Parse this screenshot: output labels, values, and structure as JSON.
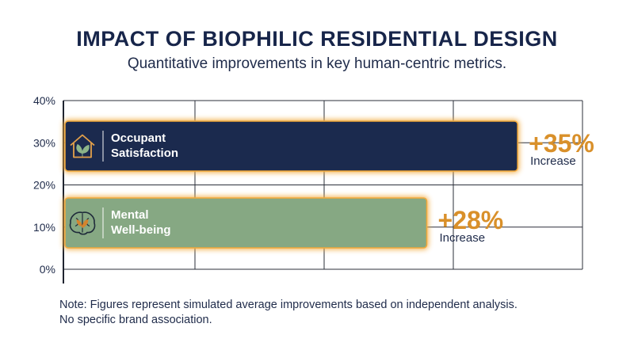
{
  "header": {
    "title": "IMPACT OF BIOPHILIC RESIDENTIAL DESIGN",
    "subtitle": "Quantitative improvements in key human-centric metrics."
  },
  "note": {
    "line1": "Note: Figures represent simulated average improvements based on independent analysis.",
    "line2": "No specific brand association."
  },
  "colors": {
    "bar_satisfaction": "#1b2a4e",
    "bar_wellbeing": "#86a883",
    "glow": "#f2a93b",
    "value_label": "#d9902a",
    "grid": "#2b2f3a"
  },
  "chart_data": {
    "type": "bar",
    "orientation": "horizontal",
    "title": "IMPACT OF BIOPHILIC RESIDENTIAL DESIGN",
    "subtitle": "Quantitative improvements in key human-centric metrics.",
    "y_ticks": [
      "0%",
      "10%",
      "20%",
      "30%",
      "40%"
    ],
    "value_range": [
      0,
      40
    ],
    "grid": true,
    "categories": [
      "Occupant Satisfaction",
      "Mental Well-being"
    ],
    "series": [
      {
        "values": [
          35,
          28
        ],
        "labels": [
          "+35%",
          "+28%"
        ],
        "sublabels": [
          "Increase",
          "Increase"
        ],
        "icons": [
          "house-leaf-icon",
          "brain-leaf-icon"
        ],
        "category_lines": [
          [
            "Occupant",
            "Satisfaction"
          ],
          [
            "Mental",
            "Well-being"
          ]
        ]
      }
    ]
  }
}
